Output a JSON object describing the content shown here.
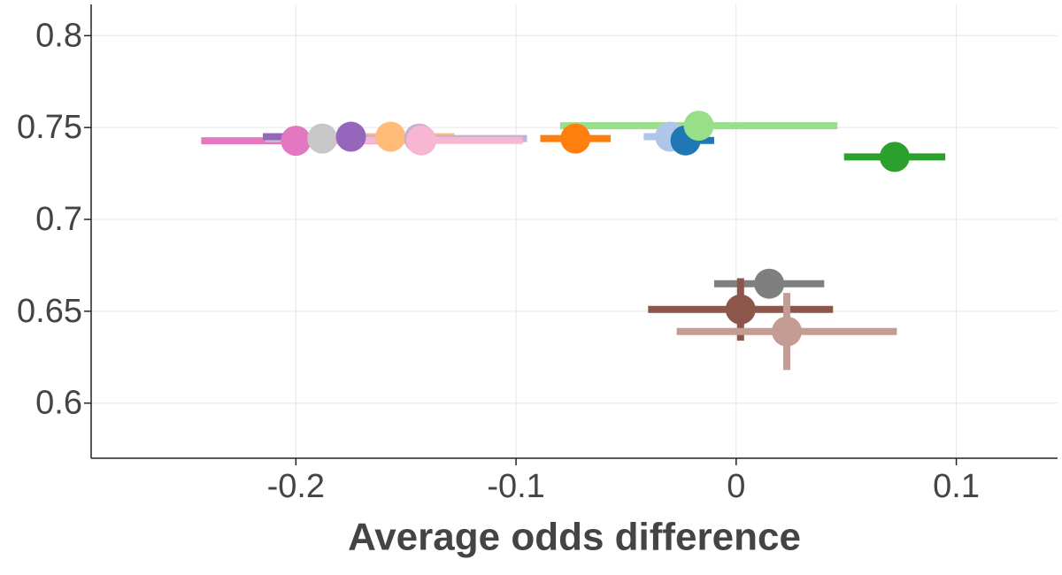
{
  "chart_data": {
    "type": "scatter",
    "x_label": "Average odds difference",
    "x": [
      -0.2,
      -0.188,
      -0.175,
      -0.157,
      -0.144,
      -0.143,
      -0.073,
      -0.03,
      -0.023,
      -0.017,
      0.072,
      0.015,
      0.002,
      0.023
    ],
    "values": [
      0.7428,
      0.744,
      0.745,
      0.745,
      0.744,
      0.743,
      0.744,
      0.745,
      0.743,
      0.751,
      0.734,
      0.665,
      0.651,
      0.639
    ],
    "xerr": [
      0.043,
      0.026,
      0.04,
      0.029,
      0.049,
      0.046,
      0.016,
      0.012,
      0.013,
      0.063,
      0.023,
      0.025,
      0.042,
      0.05
    ],
    "yerr": [
      null,
      null,
      null,
      null,
      null,
      null,
      null,
      null,
      null,
      null,
      null,
      0.004,
      0.017,
      0.021
    ],
    "colors": [
      "#e377c2",
      "#c7c7c7",
      "#9467bd",
      "#ffbb78",
      "#c5b0d5",
      "#f7b6d2",
      "#ff7f0e",
      "#aec7e8",
      "#1f77b4",
      "#98df8a",
      "#2ca02c",
      "#7f7f7f",
      "#8c564b",
      "#c49c94"
    ],
    "xlim": [
      -0.293,
      0.146
    ],
    "ylim": [
      0.57,
      0.817
    ],
    "xticks": [
      -0.2,
      -0.1,
      0,
      0.1
    ],
    "yticks": [
      0.6,
      0.65,
      0.7,
      0.75,
      0.8
    ],
    "grid": true
  }
}
